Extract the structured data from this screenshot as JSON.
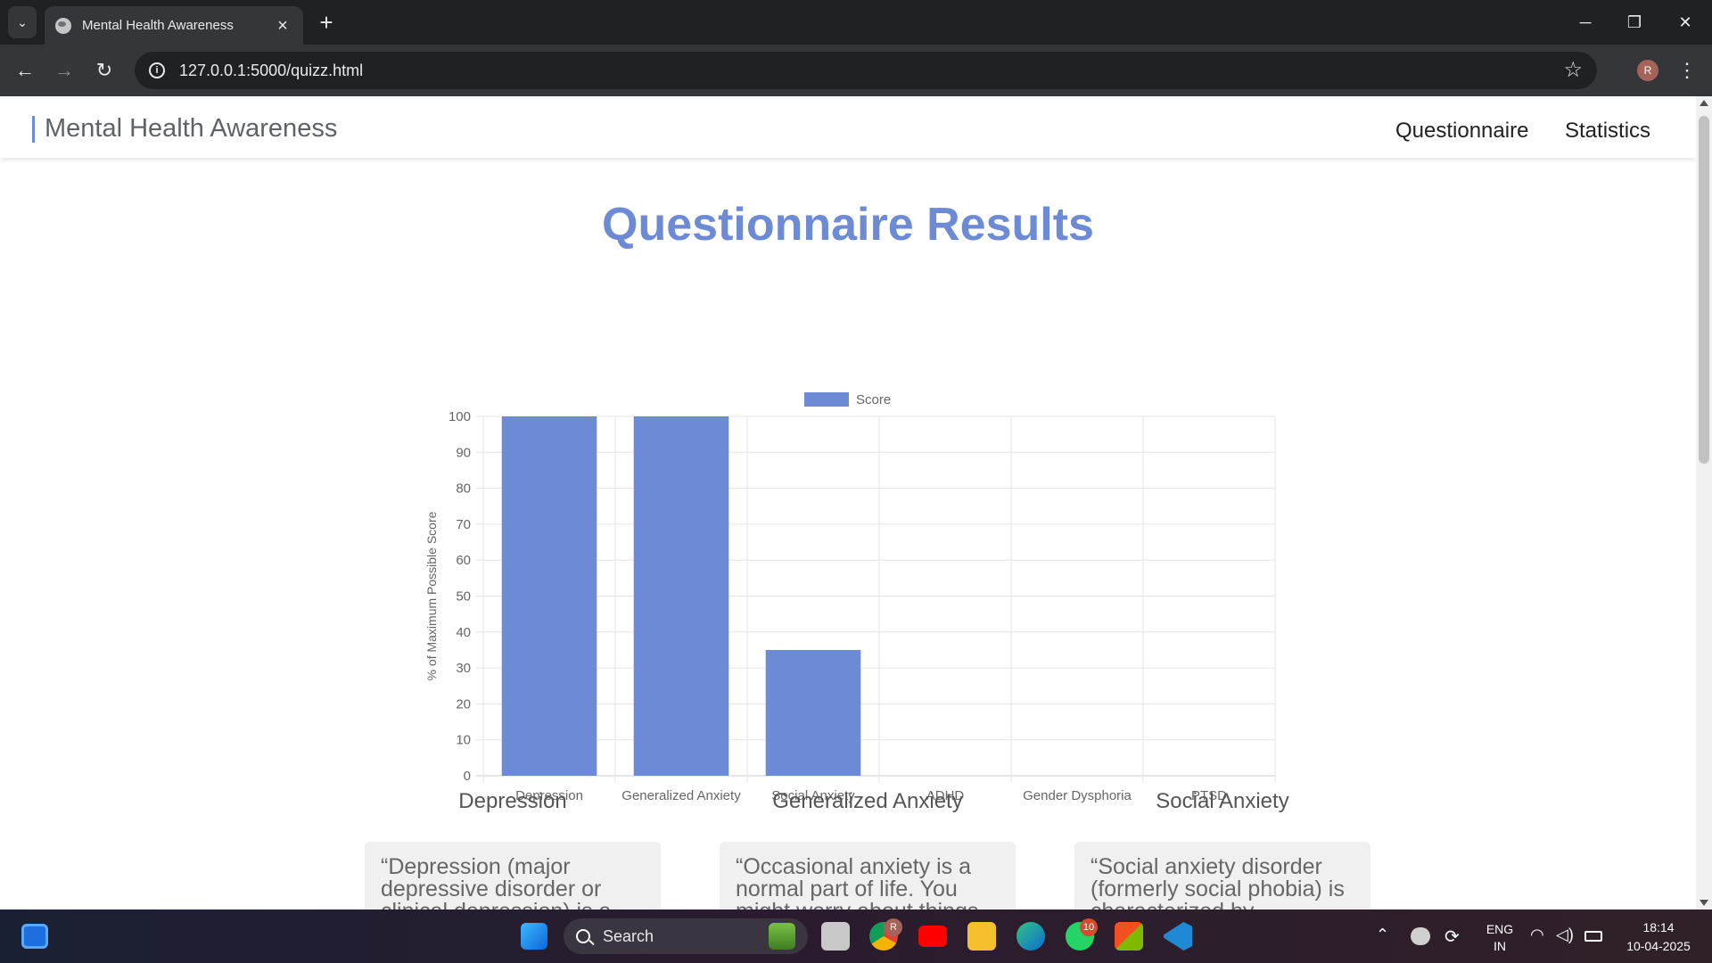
{
  "browser": {
    "tab_title": "Mental Health Awareness",
    "url": "127.0.0.1:5000/quizz.html",
    "profile_initial": "R"
  },
  "site": {
    "brand": "Mental Health Awareness",
    "nav": [
      "Questionnaire",
      "Statistics"
    ],
    "page_title": "Questionnaire Results"
  },
  "chart_data": {
    "type": "bar",
    "categories": [
      "Depression",
      "Generalized Anxiety",
      "Social Anxiety",
      "ADHD",
      "Gender Dysphoria",
      "PTSD"
    ],
    "series": [
      {
        "name": "Score",
        "values": [
          100,
          100,
          35,
          0,
          0,
          0
        ],
        "color": "#6d8ad4"
      }
    ],
    "ylabel": "% of Maximum Possible Score",
    "ylim": [
      0,
      100
    ],
    "yticks": [
      0,
      10,
      20,
      30,
      40,
      50,
      60,
      70,
      80,
      90,
      100
    ],
    "grid": true,
    "legend": "top-center"
  },
  "cards": [
    {
      "title": "Depression",
      "text": "“Depression (major depressive disorder or clinical depression) is a"
    },
    {
      "title": "Generalized Anxiety",
      "text": "“Occasional anxiety is a normal part of life. You might worry about things"
    },
    {
      "title": "Social Anxiety",
      "text": "“Social anxiety disorder (formerly social phobia) is characterized by"
    }
  ],
  "taskbar": {
    "search_label": "Search",
    "whatsapp_badge": "10",
    "chrome_badge": "R",
    "lang_line1": "ENG",
    "lang_line2": "IN",
    "time": "18:14",
    "date": "10-04-2025"
  }
}
